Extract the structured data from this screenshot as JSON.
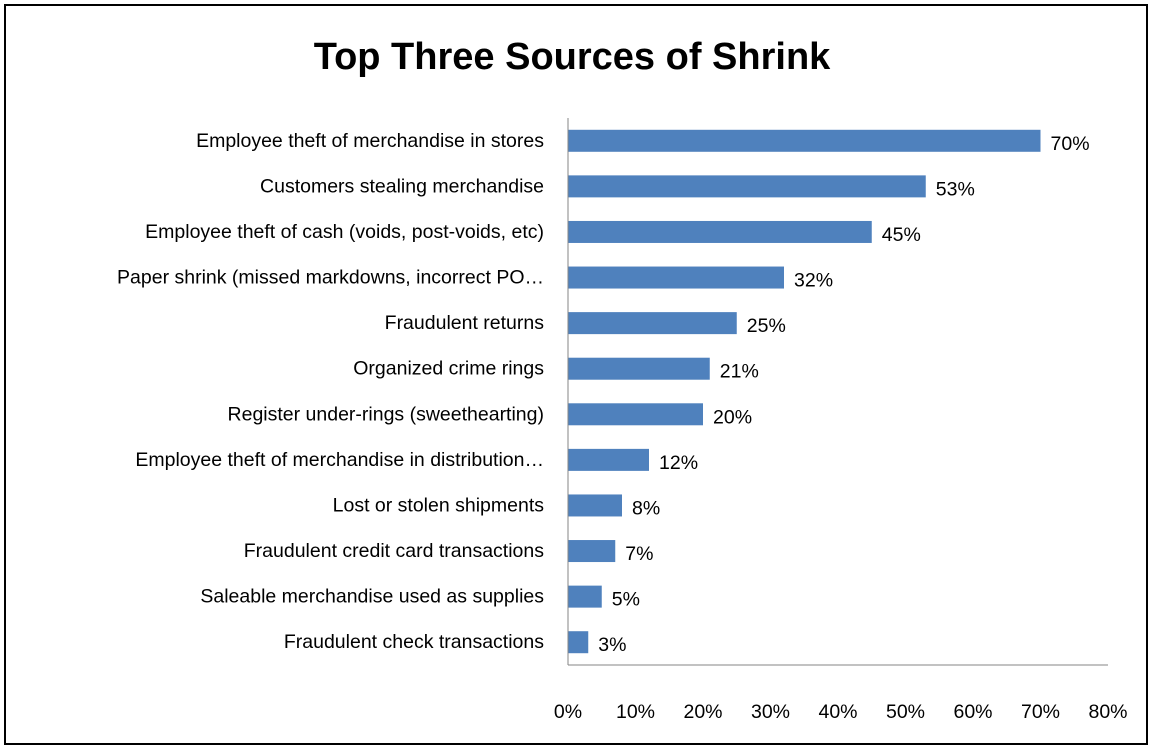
{
  "chart_data": {
    "type": "bar",
    "orientation": "horizontal",
    "title": "Top Three Sources of Shrink",
    "categories": [
      "Employee theft of merchandise in stores",
      "Customers stealing merchandise",
      "Employee theft of cash (voids, post-voids, etc)",
      "Paper shrink (missed markdowns, incorrect PO…",
      "Fraudulent returns",
      "Organized crime rings",
      "Register under-rings (sweethearting)",
      "Employee theft of merchandise in distribution…",
      "Lost or stolen shipments",
      "Fraudulent credit card transactions",
      "Saleable merchandise used as supplies",
      "Fraudulent check transactions"
    ],
    "values": [
      70,
      53,
      45,
      32,
      25,
      21,
      20,
      12,
      8,
      7,
      5,
      3
    ],
    "value_labels": [
      "70%",
      "53%",
      "45%",
      "32%",
      "25%",
      "21%",
      "20%",
      "12%",
      "8%",
      "7%",
      "5%",
      "3%"
    ],
    "xlim": [
      0,
      80
    ],
    "x_ticks": [
      0,
      10,
      20,
      30,
      40,
      50,
      60,
      70,
      80
    ],
    "x_tick_labels": [
      "0%",
      "10%",
      "20%",
      "30%",
      "40%",
      "50%",
      "60%",
      "70%",
      "80%"
    ],
    "bar_color": "#4f81bd",
    "grid": false,
    "legend": "none"
  }
}
